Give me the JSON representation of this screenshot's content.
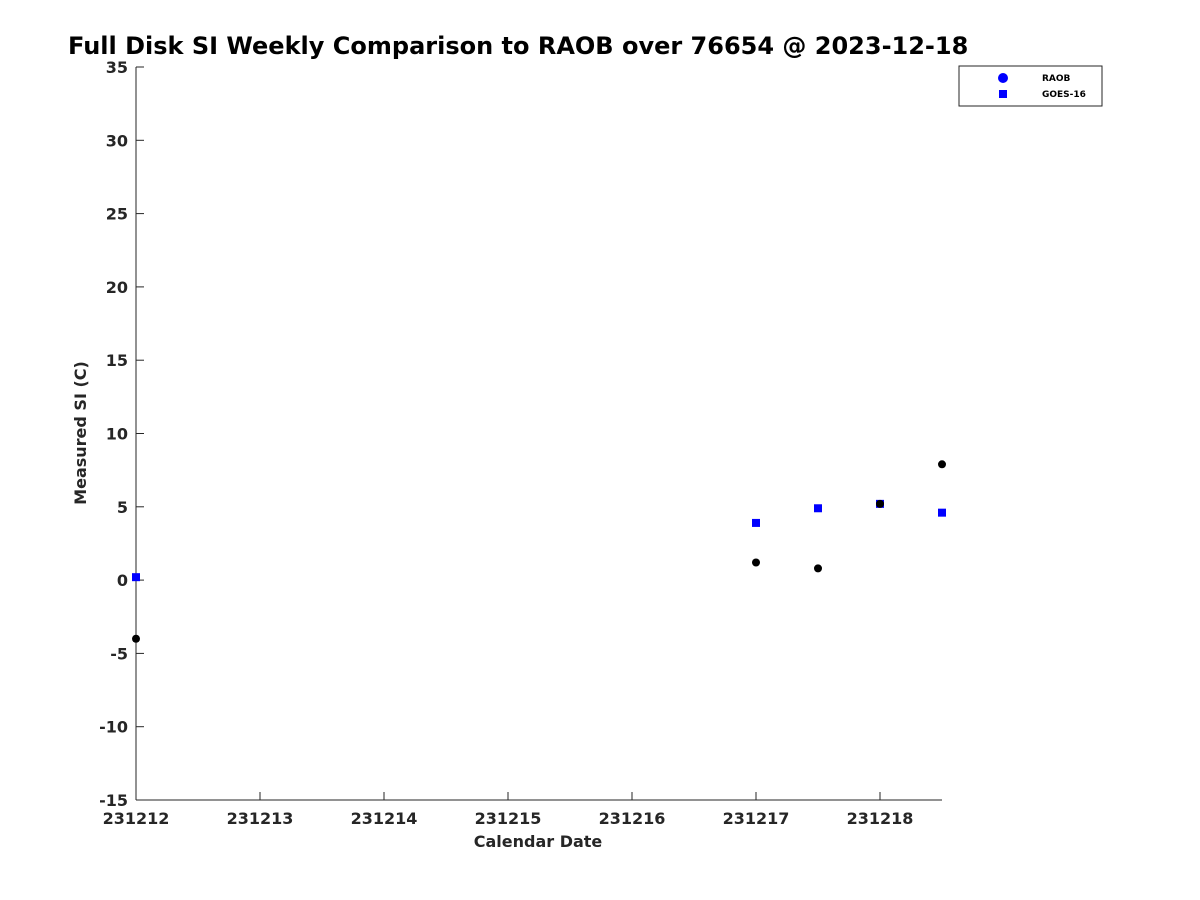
{
  "chart_data": {
    "type": "scatter",
    "title": "Full Disk SI Weekly Comparison to RAOB over 76654 @ 2023-12-18",
    "xlabel": "Calendar Date",
    "ylabel": "Measured SI (C)",
    "xlim": [
      231212,
      231218.5
    ],
    "ylim": [
      -15,
      35
    ],
    "xticks": [
      231212,
      231213,
      231214,
      231215,
      231216,
      231217,
      231218
    ],
    "xtick_labels": [
      "231212",
      "231213",
      "231214",
      "231215",
      "231216",
      "231217",
      "231218"
    ],
    "yticks": [
      -15,
      -10,
      -5,
      0,
      5,
      10,
      15,
      20,
      25,
      30,
      35
    ],
    "ytick_labels": [
      "-15",
      "-10",
      "-5",
      "0",
      "5",
      "10",
      "15",
      "20",
      "25",
      "30",
      "35"
    ],
    "grid": false,
    "legend_position": "top-right",
    "series": [
      {
        "name": "RAOB",
        "marker": "circle",
        "legend_color": "#0000ff",
        "point_color": "#000000",
        "x": [
          231212,
          231217,
          231217.5,
          231218,
          231218.5
        ],
        "y": [
          -4.0,
          1.2,
          0.8,
          5.2,
          7.9
        ]
      },
      {
        "name": "GOES-16",
        "marker": "square",
        "legend_color": "#0000ff",
        "point_color": "#0000ff",
        "x": [
          231212,
          231217,
          231217.5,
          231218,
          231218.5
        ],
        "y": [
          0.2,
          3.9,
          4.9,
          5.2,
          4.6
        ]
      }
    ]
  }
}
